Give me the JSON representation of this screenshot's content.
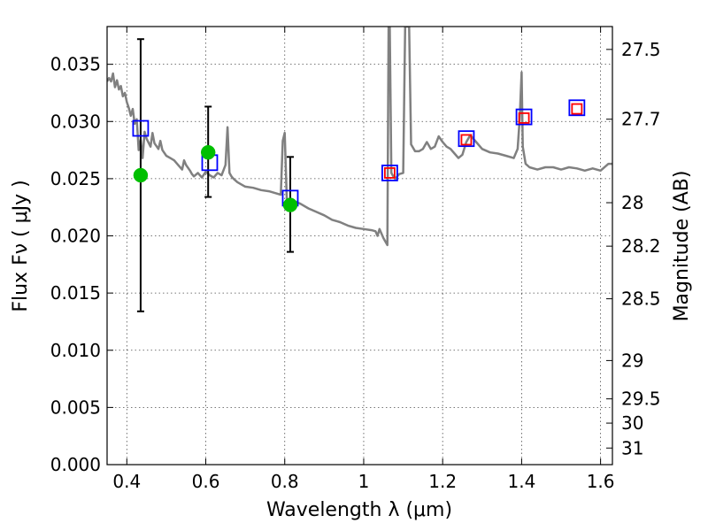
{
  "chart_data": {
    "type": "line",
    "xlabel": "Wavelength  λ (μm)",
    "ylabel": "Flux  Fν  ( μJy )",
    "ylabel_right": "Magnitude (AB)",
    "xlim": [
      0.35,
      1.63
    ],
    "ylim": [
      0.0,
      0.0383
    ],
    "grid": true,
    "x_ticks": [
      0.4,
      0.6,
      0.8,
      1.0,
      1.2,
      1.4,
      1.6
    ],
    "x_tick_labels": [
      "0.4",
      "0.6",
      "0.8",
      "1",
      "1.2",
      "1.4",
      "1.6"
    ],
    "y_ticks": [
      0.0,
      0.005,
      0.01,
      0.015,
      0.02,
      0.025,
      0.03,
      0.035
    ],
    "y_tick_labels": [
      "0.000",
      "0.005",
      "0.010",
      "0.015",
      "0.020",
      "0.025",
      "0.030",
      "0.035"
    ],
    "mag_ticks": [
      {
        "label": "27.5",
        "flux": 0.0363
      },
      {
        "label": "27.7",
        "flux": 0.0302
      },
      {
        "label": "28",
        "flux": 0.0229
      },
      {
        "label": "28.2",
        "flux": 0.0191
      },
      {
        "label": "28.5",
        "flux": 0.0145
      },
      {
        "label": "29",
        "flux": 0.0091
      },
      {
        "label": "29.5",
        "flux": 0.00575
      },
      {
        "label": "30",
        "flux": 0.00363
      },
      {
        "label": "31",
        "flux": 0.00145
      }
    ],
    "series": [
      {
        "kind": "model-spectrum",
        "color": "#808080",
        "x": [
          0.35,
          0.355,
          0.36,
          0.365,
          0.37,
          0.375,
          0.38,
          0.385,
          0.39,
          0.395,
          0.4,
          0.405,
          0.41,
          0.415,
          0.42,
          0.425,
          0.43,
          0.435,
          0.44,
          0.445,
          0.45,
          0.46,
          0.465,
          0.47,
          0.48,
          0.485,
          0.49,
          0.5,
          0.51,
          0.52,
          0.53,
          0.54,
          0.545,
          0.55,
          0.56,
          0.565,
          0.57,
          0.58,
          0.59,
          0.6,
          0.61,
          0.62,
          0.63,
          0.64,
          0.65,
          0.655,
          0.66,
          0.665,
          0.67,
          0.68,
          0.69,
          0.7,
          0.72,
          0.74,
          0.76,
          0.78,
          0.79,
          0.795,
          0.8,
          0.805,
          0.81,
          0.82,
          0.84,
          0.86,
          0.88,
          0.9,
          0.92,
          0.94,
          0.96,
          0.98,
          1.0,
          1.02,
          1.03,
          1.035,
          1.04,
          1.05,
          1.055,
          1.06,
          1.063,
          1.066,
          1.07,
          1.075,
          1.08,
          1.09,
          1.1,
          1.105,
          1.108,
          1.111,
          1.115,
          1.12,
          1.13,
          1.14,
          1.15,
          1.16,
          1.17,
          1.18,
          1.19,
          1.2,
          1.21,
          1.22,
          1.23,
          1.24,
          1.25,
          1.26,
          1.27,
          1.28,
          1.3,
          1.32,
          1.34,
          1.36,
          1.38,
          1.39,
          1.395,
          1.4,
          1.403,
          1.41,
          1.42,
          1.44,
          1.46,
          1.48,
          1.5,
          1.52,
          1.54,
          1.56,
          1.58,
          1.6,
          1.62,
          1.63
        ],
        "y": [
          0.0335,
          0.0338,
          0.0335,
          0.0342,
          0.033,
          0.0336,
          0.0328,
          0.0331,
          0.0322,
          0.0325,
          0.0317,
          0.0312,
          0.0305,
          0.0311,
          0.0298,
          0.0302,
          0.0275,
          0.0284,
          0.0268,
          0.0291,
          0.0285,
          0.0278,
          0.029,
          0.0281,
          0.0276,
          0.0283,
          0.0275,
          0.027,
          0.0268,
          0.0266,
          0.0262,
          0.0258,
          0.0266,
          0.0262,
          0.0257,
          0.0254,
          0.0252,
          0.0255,
          0.0251,
          0.0256,
          0.0253,
          0.0251,
          0.0255,
          0.0253,
          0.0262,
          0.0295,
          0.0255,
          0.0252,
          0.025,
          0.0247,
          0.0245,
          0.0243,
          0.0242,
          0.024,
          0.0239,
          0.0237,
          0.0236,
          0.0283,
          0.029,
          0.0233,
          0.0232,
          0.0231,
          0.0228,
          0.0224,
          0.0221,
          0.0218,
          0.0214,
          0.0212,
          0.0209,
          0.0207,
          0.0206,
          0.0205,
          0.0204,
          0.02,
          0.0206,
          0.0198,
          0.0195,
          0.0192,
          0.0383,
          0.0383,
          0.0255,
          0.0252,
          0.025,
          0.0254,
          0.0255,
          0.0383,
          0.0383,
          0.0383,
          0.0383,
          0.028,
          0.0274,
          0.0274,
          0.0276,
          0.0282,
          0.0276,
          0.0278,
          0.0287,
          0.0282,
          0.0278,
          0.0276,
          0.0272,
          0.0268,
          0.0271,
          0.0282,
          0.0288,
          0.0284,
          0.0276,
          0.0273,
          0.0272,
          0.027,
          0.0268,
          0.0276,
          0.0302,
          0.0343,
          0.0278,
          0.0263,
          0.026,
          0.0258,
          0.026,
          0.026,
          0.0258,
          0.026,
          0.0259,
          0.0257,
          0.0259,
          0.0257,
          0.0263,
          0.0263
        ]
      },
      {
        "kind": "model-photometry",
        "marker": "open-square",
        "color": "#0000ff",
        "x": [
          0.435,
          0.61,
          0.814,
          1.066,
          1.26,
          1.406,
          1.54
        ],
        "y": [
          0.0294,
          0.0264,
          0.0233,
          0.0255,
          0.0285,
          0.0304,
          0.0312
        ]
      },
      {
        "kind": "observed-photometry",
        "marker": "open-square",
        "color": "#ff0000",
        "x": [
          1.066,
          1.26,
          1.406,
          1.54
        ],
        "y": [
          0.0255,
          0.0284,
          0.0303,
          0.0311
        ]
      },
      {
        "kind": "observed-photometry",
        "marker": "filled-circle",
        "color": "#00bf00",
        "x": [
          0.435,
          0.606,
          0.814
        ],
        "y": [
          0.0253,
          0.0273,
          0.0227
        ]
      }
    ],
    "error_bars": [
      {
        "x": 0.435,
        "low": 0.0134,
        "high": 0.0372
      },
      {
        "x": 0.606,
        "low": 0.0234,
        "high": 0.0313
      },
      {
        "x": 0.814,
        "low": 0.0186,
        "high": 0.0269
      }
    ]
  }
}
